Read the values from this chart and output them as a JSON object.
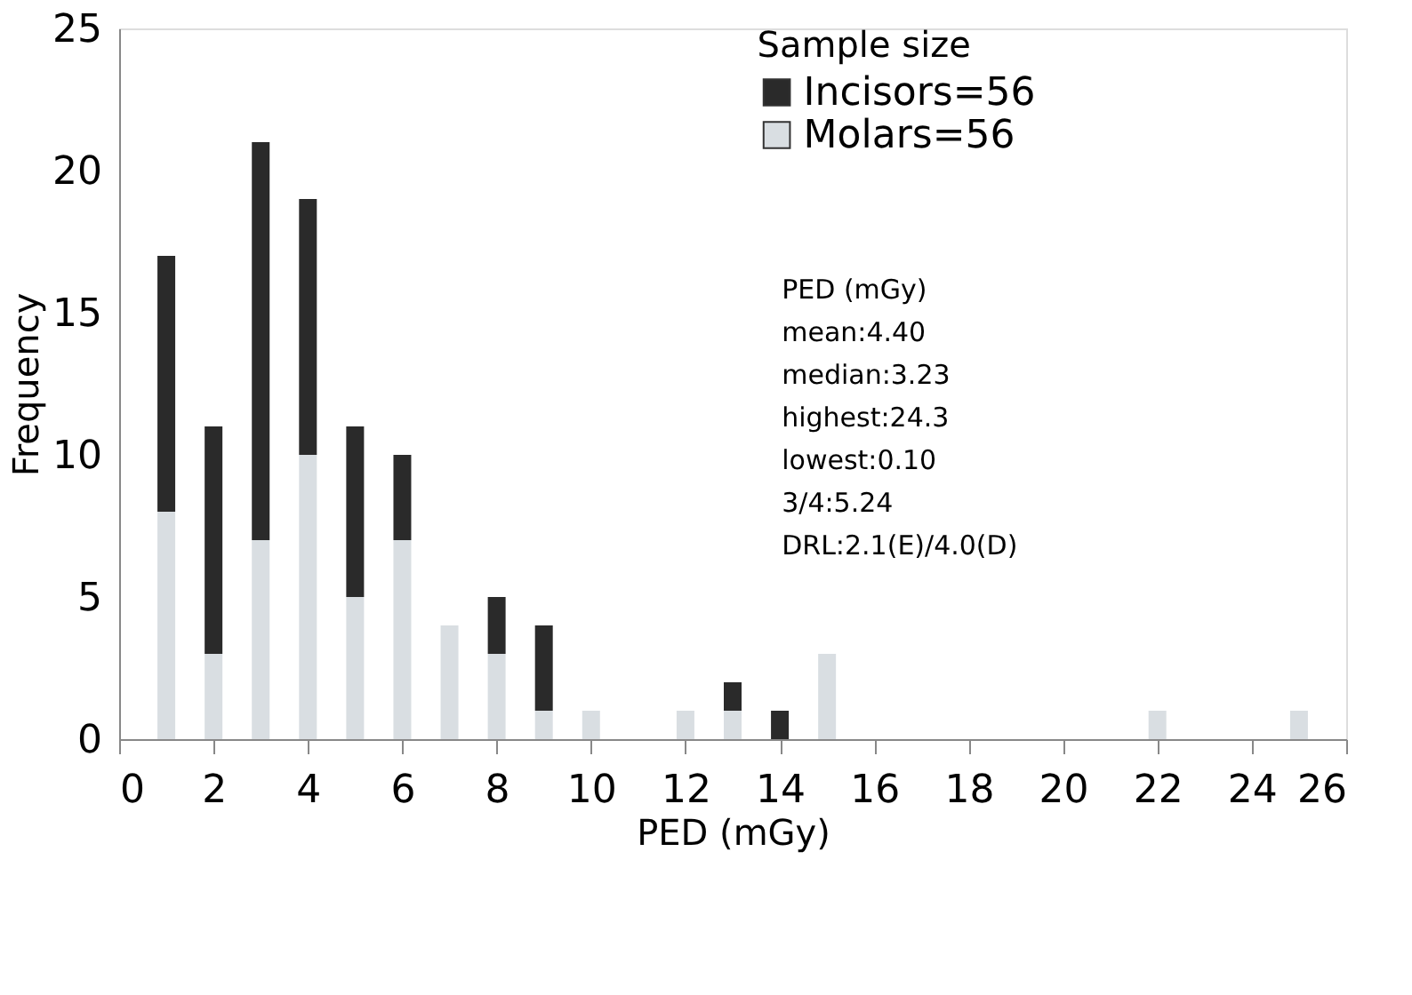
{
  "chart_data": {
    "type": "bar",
    "stacked": true,
    "xlabel": "PED  (mGy)",
    "ylabel": "Frequency",
    "legend_title": "Sample size",
    "legend": "top right",
    "grid": false,
    "x": [
      1,
      2,
      3,
      4,
      5,
      6,
      7,
      8,
      9,
      10,
      12,
      13,
      14,
      15,
      22,
      25
    ],
    "series": [
      {
        "name": "Molars=56",
        "color": "#d9dee2",
        "values": [
          8,
          3,
          7,
          10,
          5,
          7,
          4,
          3,
          1,
          1,
          1,
          1,
          0,
          3,
          1,
          1
        ]
      },
      {
        "name": "Incisors=56",
        "color": "#2a2a2a",
        "values": [
          9,
          8,
          14,
          9,
          6,
          3,
          0,
          2,
          3,
          0,
          0,
          1,
          1,
          0,
          0,
          0
        ]
      }
    ],
    "xlim": [
      0,
      26
    ],
    "xticks": [
      0,
      2,
      4,
      6,
      8,
      10,
      12,
      14,
      16,
      18,
      20,
      22,
      24,
      26
    ],
    "ylim": [
      0,
      25
    ],
    "yticks": [
      0,
      5,
      10,
      15,
      20,
      25
    ],
    "annotations": [
      "PED  (mGy)",
      "mean:4.40",
      "median:3.23",
      "highest:24.3",
      "lowest:0.10",
      "3/4:5.24",
      "DRL:2.1(E)/4.0(D)"
    ]
  }
}
